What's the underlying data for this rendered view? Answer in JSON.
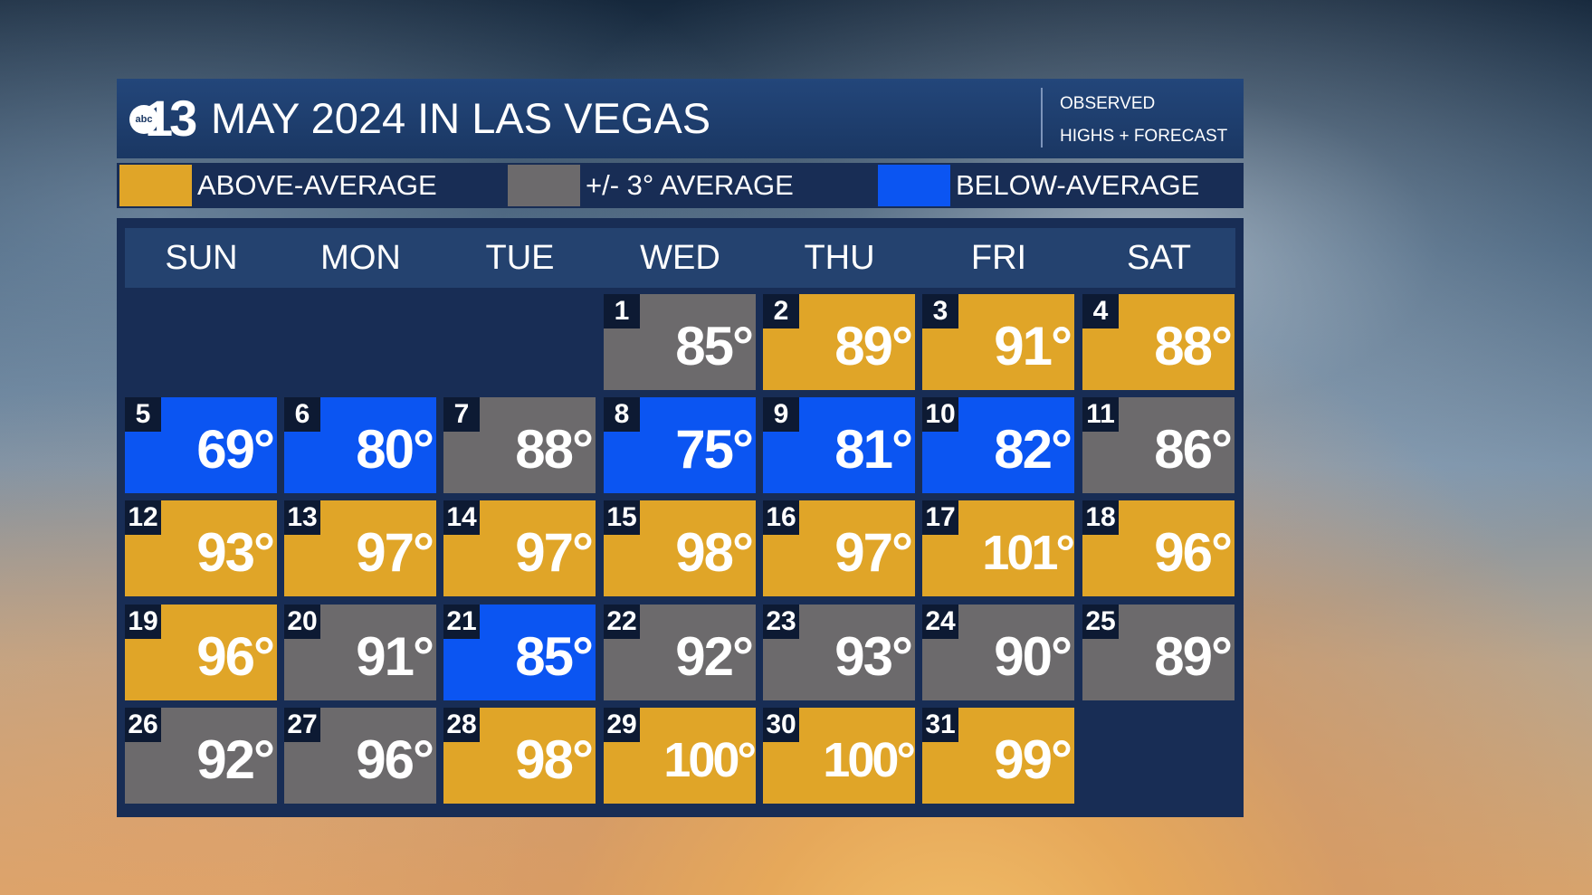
{
  "header": {
    "logo_small": "abc",
    "logo_number": "13",
    "title": "MAY 2024 IN LAS VEGAS",
    "note_line1": "OBSERVED",
    "note_line2": "HIGHS + FORECAST"
  },
  "legend": [
    {
      "label": "ABOVE-AVERAGE",
      "color": "#e0a528"
    },
    {
      "label": "+/- 3° AVERAGE",
      "color": "#6c6a6c"
    },
    {
      "label": "BELOW-AVERAGE",
      "color": "#0b55f2"
    }
  ],
  "weekdays": [
    "SUN",
    "MON",
    "TUE",
    "WED",
    "THU",
    "FRI",
    "SAT"
  ],
  "colors": {
    "above": "#e0a528",
    "avg": "#6c6a6c",
    "below": "#0b55f2"
  },
  "first_weekday_index": 3,
  "days": [
    {
      "day": "1",
      "temp": "85°",
      "category": "avg"
    },
    {
      "day": "2",
      "temp": "89°",
      "category": "above"
    },
    {
      "day": "3",
      "temp": "91°",
      "category": "above"
    },
    {
      "day": "4",
      "temp": "88°",
      "category": "above"
    },
    {
      "day": "5",
      "temp": "69°",
      "category": "below"
    },
    {
      "day": "6",
      "temp": "80°",
      "category": "below"
    },
    {
      "day": "7",
      "temp": "88°",
      "category": "avg"
    },
    {
      "day": "8",
      "temp": "75°",
      "category": "below"
    },
    {
      "day": "9",
      "temp": "81°",
      "category": "below"
    },
    {
      "day": "10",
      "temp": "82°",
      "category": "below"
    },
    {
      "day": "11",
      "temp": "86°",
      "category": "avg"
    },
    {
      "day": "12",
      "temp": "93°",
      "category": "above"
    },
    {
      "day": "13",
      "temp": "97°",
      "category": "above"
    },
    {
      "day": "14",
      "temp": "97°",
      "category": "above"
    },
    {
      "day": "15",
      "temp": "98°",
      "category": "above"
    },
    {
      "day": "16",
      "temp": "97°",
      "category": "above"
    },
    {
      "day": "17",
      "temp": "101°",
      "category": "above"
    },
    {
      "day": "18",
      "temp": "96°",
      "category": "above"
    },
    {
      "day": "19",
      "temp": "96°",
      "category": "above"
    },
    {
      "day": "20",
      "temp": "91°",
      "category": "avg"
    },
    {
      "day": "21",
      "temp": "85°",
      "category": "below"
    },
    {
      "day": "22",
      "temp": "92°",
      "category": "avg"
    },
    {
      "day": "23",
      "temp": "93°",
      "category": "avg"
    },
    {
      "day": "24",
      "temp": "90°",
      "category": "avg"
    },
    {
      "day": "25",
      "temp": "89°",
      "category": "avg"
    },
    {
      "day": "26",
      "temp": "92°",
      "category": "avg"
    },
    {
      "day": "27",
      "temp": "96°",
      "category": "avg"
    },
    {
      "day": "28",
      "temp": "98°",
      "category": "above"
    },
    {
      "day": "29",
      "temp": "100°",
      "category": "above"
    },
    {
      "day": "30",
      "temp": "100°",
      "category": "above"
    },
    {
      "day": "31",
      "temp": "99°",
      "category": "above"
    }
  ]
}
